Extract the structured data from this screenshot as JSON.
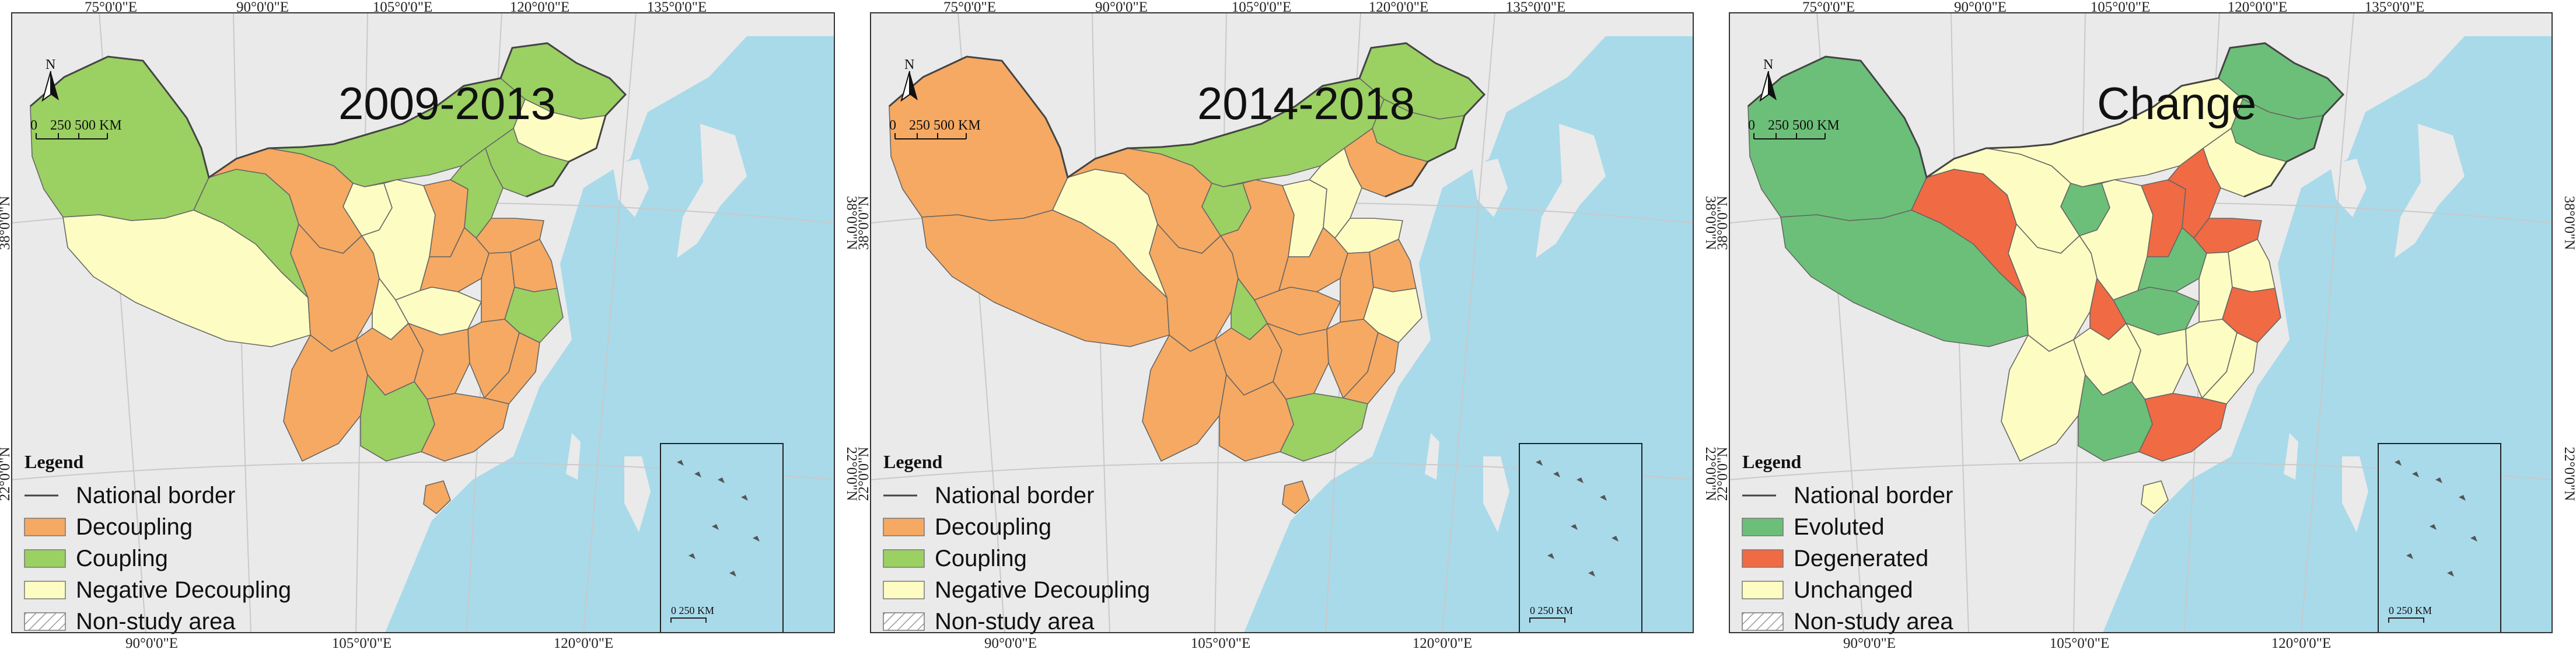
{
  "graticule": {
    "top_labels": [
      "75°0'0\"E",
      "90°0'0\"E",
      "105°0'0\"E",
      "120°0'0\"E",
      "135°0'0\"E"
    ],
    "bottom_labels": [
      "90°0'0\"E",
      "105°0'0\"E",
      "120°0'0\"E"
    ],
    "left_labels": [
      "38°0'0\"N",
      "22°0'0\"N"
    ],
    "right_labels": [
      "38°0'0\"N",
      "22°0'0\"N"
    ]
  },
  "north_label": "N",
  "scale_bar": {
    "ticks": [
      "0",
      "250",
      "500 KM"
    ]
  },
  "inset_scale_label": "0   250 KM",
  "legend_title": "Legend",
  "colors": {
    "sea": "#a8daea",
    "land_other": "#eaeaea",
    "decoupling": "#f6a962",
    "coupling": "#9bd062",
    "negative_decoupling": "#fdfdc3",
    "evoluted": "#6cbf78",
    "degenerated": "#f06a44",
    "unchanged": "#fdfdc3",
    "border": "#666666"
  },
  "panels": [
    {
      "title": "2009-2013",
      "legend": [
        {
          "label": "National border",
          "kind": "line"
        },
        {
          "label": "Decoupling",
          "kind": "swatch",
          "color_key": "decoupling"
        },
        {
          "label": "Coupling",
          "kind": "swatch",
          "color_key": "coupling"
        },
        {
          "label": "Negative Decoupling",
          "kind": "swatch",
          "color_key": "negative_decoupling"
        },
        {
          "label": "Non-study area",
          "kind": "hatch"
        }
      ],
      "regions": {
        "xinjiang": "coupling",
        "tibet": "negative_decoupling",
        "qinghai": "coupling",
        "gansu": "decoupling",
        "inner_mongolia": "coupling",
        "heilongjiang": "coupling",
        "jilin": "negative_decoupling",
        "liaoning": "coupling",
        "ningxia": "negative_decoupling",
        "shaanxi": "negative_decoupling",
        "shanxi": "decoupling",
        "hebei": "coupling",
        "shandong": "decoupling",
        "henan": "decoupling",
        "sichuan": "decoupling",
        "chongqing": "negative_decoupling",
        "hubei": "negative_decoupling",
        "anhui": "decoupling",
        "jiangsu": "decoupling",
        "zhejiang": "coupling",
        "yunnan": "decoupling",
        "guizhou": "decoupling",
        "hunan": "decoupling",
        "jiangxi": "decoupling",
        "fujian": "decoupling",
        "guangxi": "coupling",
        "guangdong": "decoupling",
        "hainan": "decoupling"
      }
    },
    {
      "title": "2014-2018",
      "legend": [
        {
          "label": "National border",
          "kind": "line"
        },
        {
          "label": "Decoupling",
          "kind": "swatch",
          "color_key": "decoupling"
        },
        {
          "label": "Coupling",
          "kind": "swatch",
          "color_key": "coupling"
        },
        {
          "label": "Negative Decoupling",
          "kind": "swatch",
          "color_key": "negative_decoupling"
        },
        {
          "label": "Non-study area",
          "kind": "hatch"
        }
      ],
      "regions": {
        "xinjiang": "decoupling",
        "tibet": "decoupling",
        "qinghai": "negative_decoupling",
        "gansu": "decoupling",
        "inner_mongolia": "coupling",
        "heilongjiang": "coupling",
        "jilin": "coupling",
        "liaoning": "decoupling",
        "ningxia": "coupling",
        "shaanxi": "decoupling",
        "shanxi": "negative_decoupling",
        "hebei": "negative_decoupling",
        "shandong": "negative_decoupling",
        "henan": "decoupling",
        "sichuan": "decoupling",
        "chongqing": "coupling",
        "hubei": "decoupling",
        "anhui": "decoupling",
        "jiangsu": "decoupling",
        "zhejiang": "negative_decoupling",
        "yunnan": "decoupling",
        "guizhou": "decoupling",
        "hunan": "decoupling",
        "jiangxi": "decoupling",
        "fujian": "decoupling",
        "guangxi": "decoupling",
        "guangdong": "coupling",
        "hainan": "decoupling"
      }
    },
    {
      "title": "Change",
      "legend": [
        {
          "label": "National border",
          "kind": "line"
        },
        {
          "label": "Evoluted",
          "kind": "swatch",
          "color_key": "evoluted"
        },
        {
          "label": "Degenerated",
          "kind": "swatch",
          "color_key": "degenerated"
        },
        {
          "label": "Unchanged",
          "kind": "swatch",
          "color_key": "unchanged"
        },
        {
          "label": "Non-study area",
          "kind": "hatch"
        }
      ],
      "regions": {
        "xinjiang": "evoluted",
        "tibet": "evoluted",
        "qinghai": "degenerated",
        "gansu": "unchanged",
        "inner_mongolia": "unchanged",
        "heilongjiang": "evoluted",
        "jilin": "evoluted",
        "liaoning": "unchanged",
        "ningxia": "evoluted",
        "shaanxi": "unchanged",
        "shanxi": "degenerated",
        "hebei": "degenerated",
        "shandong": "degenerated",
        "henan": "evoluted",
        "sichuan": "unchanged",
        "chongqing": "degenerated",
        "hubei": "evoluted",
        "anhui": "unchanged",
        "jiangsu": "unchanged",
        "zhejiang": "degenerated",
        "yunnan": "unchanged",
        "guizhou": "unchanged",
        "hunan": "unchanged",
        "jiangxi": "unchanged",
        "fujian": "unchanged",
        "guangxi": "evoluted",
        "guangdong": "degenerated",
        "hainan": "unchanged"
      }
    }
  ]
}
